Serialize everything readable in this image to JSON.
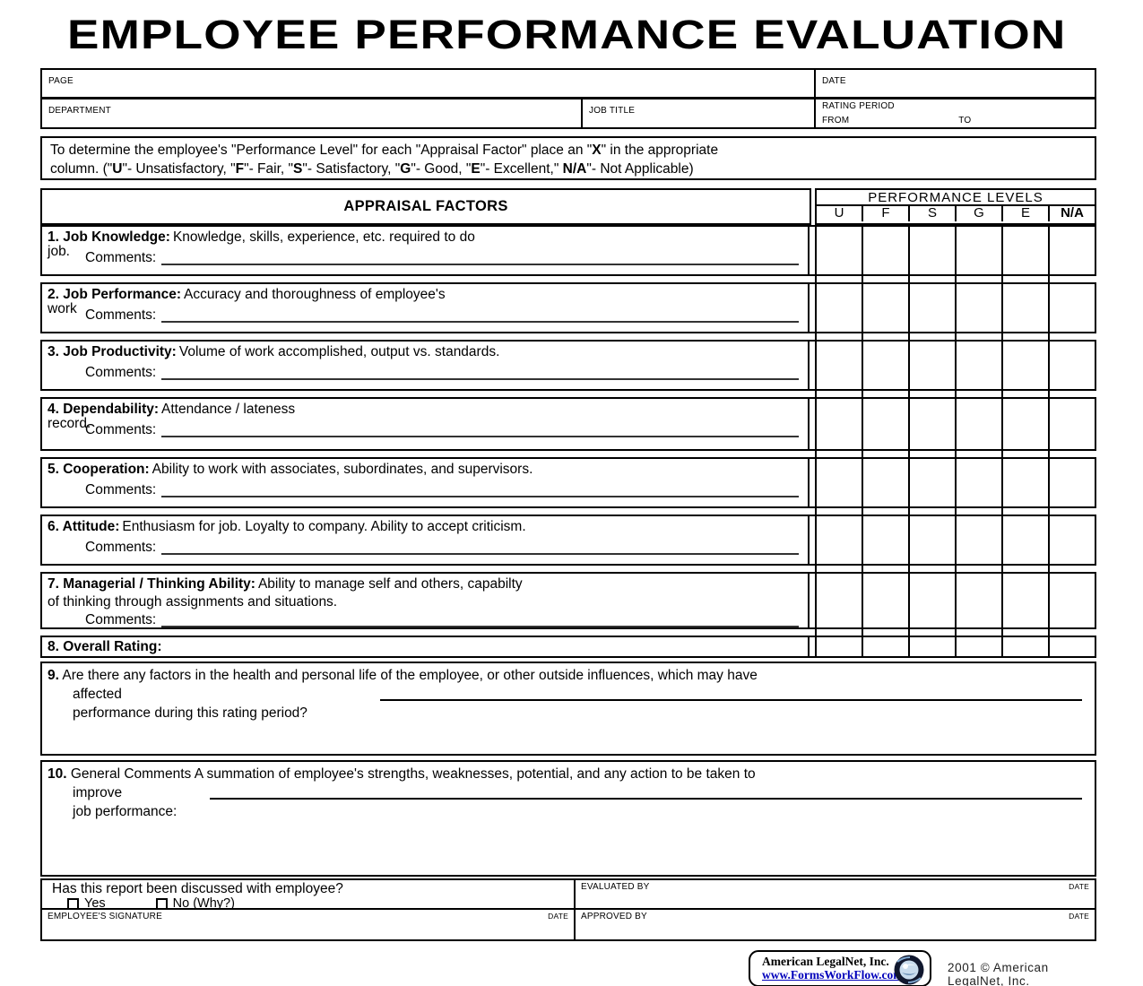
{
  "title": "EMPLOYEE PERFORMANCE EVALUATION",
  "header": {
    "page_label": "PAGE",
    "date_label": "DATE",
    "department_label": "DEPARTMENT",
    "job_title_label": "JOB TITLE",
    "rating_period_label": "RATING PERIOD",
    "from_label": "FROM",
    "to_label": "TO"
  },
  "instructions": {
    "line1": [
      {
        "t": "To determine the employee's \"Performance Level\" for each \"Appraisal Factor\" place an \"",
        "b": false
      },
      {
        "t": "X",
        "b": true
      },
      {
        "t": "\" in the appropriate",
        "b": false
      }
    ],
    "line2": [
      {
        "t": "column. (\"",
        "b": false
      },
      {
        "t": "U",
        "b": true
      },
      {
        "t": "\"- Unsatisfactory, \"",
        "b": false
      },
      {
        "t": "F",
        "b": true
      },
      {
        "t": "\"- Fair, \"",
        "b": false
      },
      {
        "t": "S",
        "b": true
      },
      {
        "t": "\"- Satisfactory, \"",
        "b": false
      },
      {
        "t": "G",
        "b": true
      },
      {
        "t": "\"- Good, \"",
        "b": false
      },
      {
        "t": "E",
        "b": true
      },
      {
        "t": "\"- Excellent,\" ",
        "b": false
      },
      {
        "t": "N/A",
        "b": true
      },
      {
        "t": "\"- Not Applicable)",
        "b": false
      }
    ]
  },
  "table": {
    "appraisal_factors_label": "APPRAISAL FACTORS",
    "performance_levels_label": "PERFORMANCE LEVELS",
    "levels": [
      "U",
      "F",
      "S",
      "G",
      "E",
      "N/A"
    ]
  },
  "factors": [
    {
      "label": "1. Job Knowledge:",
      "desc": "Knowledge, skills, experience, etc. required to do",
      "wrap": "job.",
      "comments_label": "Comments:"
    },
    {
      "label": "2. Job Performance:",
      "desc": "Accuracy and thoroughness of employee's",
      "wrap": "work",
      "comments_label": "Comments:"
    },
    {
      "label": "3. Job Productivity:",
      "desc": "Volume of work accomplished, output vs. standards.",
      "comments_label": "Comments:"
    },
    {
      "label": "4. Dependability:",
      "desc": "Attendance / lateness",
      "wrap": "record.",
      "comments_label": "Comments:"
    },
    {
      "label": "5. Cooperation:",
      "desc": "Ability to work with associates, subordinates, and supervisors.",
      "comments_label": "Comments:"
    },
    {
      "label": "6. Attitude:",
      "desc": "Enthusiasm for job. Loyalty to company. Ability to accept criticism.",
      "comments_label": "Comments:"
    },
    {
      "label": "7. Managerial / Thinking Ability:",
      "desc": "Ability to manage self and others, capabilty",
      "desc2": "of thinking through assignments and situations.",
      "comments_label": "Comments:"
    },
    {
      "label": "8. Overall Rating:"
    }
  ],
  "question9": {
    "num": "9.",
    "line1": "Are there any factors in the health and personal life of the employee, or other outside influences, which may have",
    "line2": "affected",
    "line3": "performance during this rating period?"
  },
  "question10": {
    "num": "10.",
    "line1": "General Comments A summation of employee's strengths, weaknesses, potential, and any action to be taken to",
    "line2": "improve",
    "line3": "job performance:"
  },
  "bottom": {
    "question": "Has this report been discussed with employee?",
    "yes_label": "Yes",
    "no_label": "No (Why?)",
    "employee_signature_label": "EMPLOYEE'S SIGNATURE",
    "evaluated_by_label": "EVALUATED BY",
    "approved_by_label": "APPROVED BY",
    "date_label": "DATE"
  },
  "footer": {
    "company": "American LegalNet, Inc.",
    "website": "www.FormsWorkFlow.com",
    "copyright": "2001 © American LegalNet, Inc.",
    "link_color": "#0000bb"
  }
}
